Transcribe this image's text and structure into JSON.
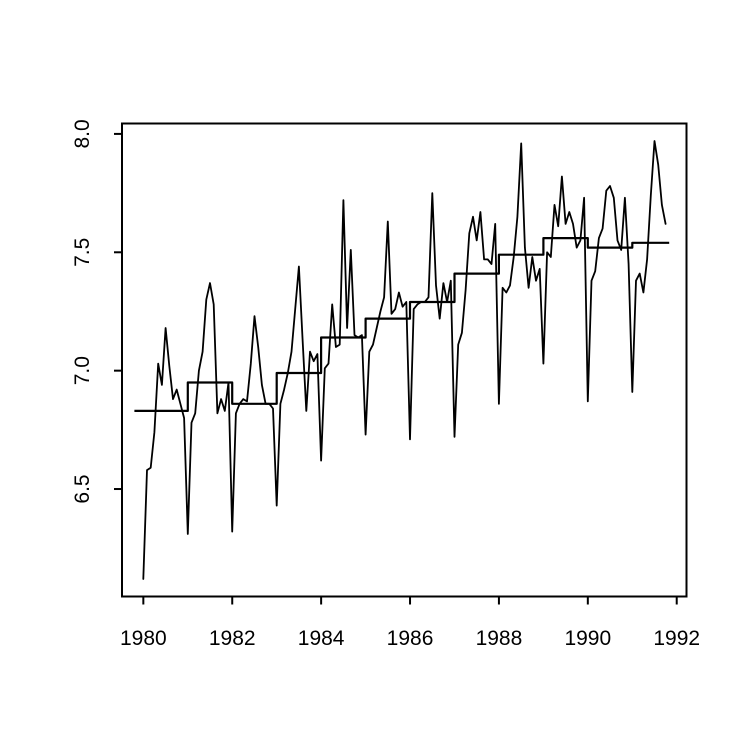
{
  "chart_data": {
    "type": "line",
    "title": "",
    "xlabel": "",
    "ylabel": "",
    "grid": false,
    "legend": null,
    "background": "#ffffff",
    "line_color": "#000000",
    "xlim": [
      1979.52,
      1992.22
    ],
    "ylim": [
      6.046,
      8.044
    ],
    "x_ticks": [
      1980,
      1982,
      1984,
      1986,
      1988,
      1990,
      1992
    ],
    "y_ticks": [
      6.5,
      7.0,
      7.5,
      8.0
    ],
    "series": [
      {
        "name": "monthly series",
        "kind": "line",
        "start_year": 1980,
        "start_month": 1,
        "frequency": 12,
        "values": [
          6.12,
          6.58,
          6.59,
          6.74,
          7.03,
          6.94,
          7.18,
          7.02,
          6.88,
          6.92,
          6.86,
          6.8,
          6.31,
          6.78,
          6.82,
          7.0,
          7.08,
          7.3,
          7.37,
          7.28,
          6.82,
          6.88,
          6.83,
          6.95,
          6.32,
          6.82,
          6.86,
          6.88,
          6.87,
          7.03,
          7.23,
          7.1,
          6.94,
          6.86,
          6.86,
          6.84,
          6.43,
          6.86,
          6.92,
          6.99,
          7.08,
          7.26,
          7.44,
          7.13,
          6.83,
          7.08,
          7.04,
          7.07,
          6.62,
          7.01,
          7.03,
          7.28,
          7.1,
          7.11,
          7.72,
          7.18,
          7.51,
          7.15,
          7.14,
          7.15,
          6.73,
          7.08,
          7.11,
          7.18,
          7.25,
          7.31,
          7.63,
          7.24,
          7.26,
          7.33,
          7.27,
          7.29,
          6.71,
          7.26,
          7.28,
          7.29,
          7.29,
          7.31,
          7.75,
          7.36,
          7.22,
          7.37,
          7.29,
          7.38,
          6.72,
          7.11,
          7.16,
          7.34,
          7.58,
          7.65,
          7.55,
          7.67,
          7.47,
          7.47,
          7.45,
          7.62,
          6.86,
          7.35,
          7.33,
          7.36,
          7.48,
          7.65,
          7.96,
          7.52,
          7.35,
          7.48,
          7.38,
          7.43,
          7.03,
          7.5,
          7.48,
          7.7,
          7.61,
          7.82,
          7.62,
          7.67,
          7.62,
          7.52,
          7.55,
          7.73,
          6.87,
          7.38,
          7.42,
          7.56,
          7.6,
          7.76,
          7.78,
          7.73,
          7.55,
          7.51,
          7.73,
          7.45,
          6.91,
          7.38,
          7.41,
          7.33,
          7.47,
          7.74,
          7.97,
          7.87,
          7.7,
          7.62
        ]
      },
      {
        "name": "annual mean step line",
        "kind": "step",
        "years": [
          1980,
          1981,
          1982,
          1983,
          1984,
          1985,
          1986,
          1987,
          1988,
          1989,
          1990,
          1991
        ],
        "values": [
          6.83,
          6.95,
          6.86,
          6.99,
          7.14,
          7.22,
          7.29,
          7.41,
          7.49,
          7.56,
          7.52,
          7.54
        ],
        "first_extends_to": 1979.8,
        "last_extends_to": 1991.83
      }
    ]
  }
}
